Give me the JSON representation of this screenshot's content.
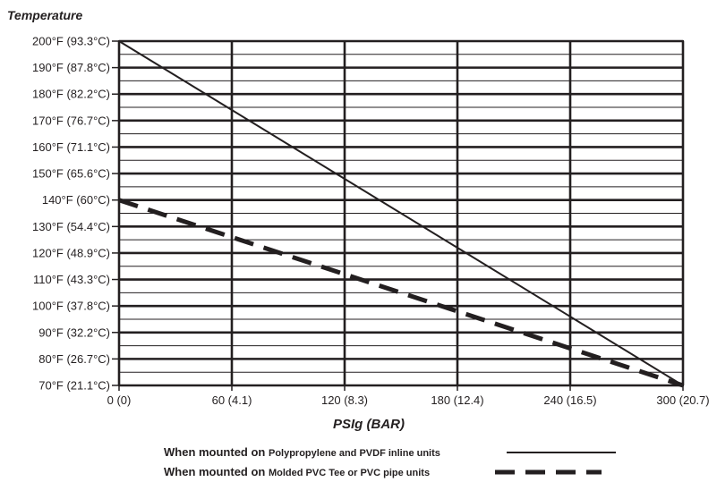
{
  "chart_data": {
    "type": "line",
    "ylabel": "Temperature",
    "xlabel": "PSIg (BAR)",
    "x_ticks": [
      {
        "value": 0,
        "label": "0 (0)"
      },
      {
        "value": 60,
        "label": "60 (4.1)"
      },
      {
        "value": 120,
        "label": "120 (8.3)"
      },
      {
        "value": 180,
        "label": "180 (12.4)"
      },
      {
        "value": 240,
        "label": "240 (16.5)"
      },
      {
        "value": 300,
        "label": "300 (20.7)"
      }
    ],
    "y_ticks": [
      {
        "value": 70,
        "label": "70°F (21.1°C)"
      },
      {
        "value": 80,
        "label": "80°F (26.7°C)"
      },
      {
        "value": 90,
        "label": "90°F (32.2°C)"
      },
      {
        "value": 100,
        "label": "100°F (37.8°C)"
      },
      {
        "value": 110,
        "label": "110°F (43.3°C)"
      },
      {
        "value": 120,
        "label": "120°F (48.9°C)"
      },
      {
        "value": 130,
        "label": "130°F (54.4°C)"
      },
      {
        "value": 140,
        "label": "140°F (60°C)"
      },
      {
        "value": 150,
        "label": "150°F (65.6°C)"
      },
      {
        "value": 160,
        "label": "160°F (71.1°C)"
      },
      {
        "value": 170,
        "label": "170°F (76.7°C)"
      },
      {
        "value": 180,
        "label": "180°F (82.2°C)"
      },
      {
        "value": 190,
        "label": "190°F (87.8°C)"
      },
      {
        "value": 200,
        "label": "200°F (93.3°C)"
      }
    ],
    "xlim": [
      0,
      300
    ],
    "ylim": [
      70,
      200
    ],
    "grid": true,
    "series": [
      {
        "name_prefix": "When mounted on",
        "name_suffix": "Polypropylene and PVDF inline units",
        "style": "solid",
        "x": [
          0,
          300
        ],
        "y": [
          200,
          70
        ]
      },
      {
        "name_prefix": "When mounted on",
        "name_suffix": "Molded PVC Tee or PVC pipe units",
        "style": "dashed",
        "x": [
          0,
          300
        ],
        "y": [
          140,
          70
        ]
      }
    ],
    "legend_position": "bottom",
    "colors": {
      "ink": "#231f20",
      "background": "#ffffff"
    }
  }
}
